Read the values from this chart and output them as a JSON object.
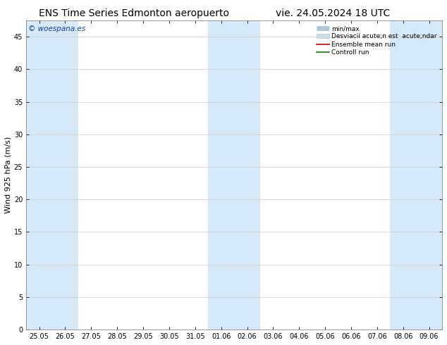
{
  "title_left": "ENS Time Series Edmonton aeropuerto",
  "title_right": "vie. 24.05.2024 18 UTC",
  "ylabel": "Wind 925 hPa (m/s)",
  "watermark": "© woespana.es",
  "ylim": [
    0,
    47.5
  ],
  "yticks": [
    0,
    5,
    10,
    15,
    20,
    25,
    30,
    35,
    40,
    45
  ],
  "x_labels": [
    "25.05",
    "26.05",
    "27.05",
    "28.05",
    "29.05",
    "30.05",
    "31.05",
    "01.06",
    "02.06",
    "03.06",
    "04.06",
    "05.06",
    "06.06",
    "07.06",
    "08.06",
    "09.06"
  ],
  "shaded_indices": [
    0,
    1,
    7,
    8,
    14,
    15
  ],
  "shade_color": "#d6e9f8",
  "bg_color": "#ffffff",
  "plot_bg": "#ffffff",
  "legend_minmax_color": "#b0c8d8",
  "legend_std_color": "#ccdde8",
  "ensemble_color": "#cc0000",
  "control_color": "#008800",
  "title_fontsize": 10,
  "tick_fontsize": 7,
  "ylabel_fontsize": 8,
  "watermark_color": "#1040a0",
  "grid_color": "#cccccc",
  "spine_color": "#888888",
  "legend_labels": [
    "min/max",
    "Desviaci acute;n est  acute;ndar",
    "Ensemble mean run",
    "Controll run"
  ]
}
